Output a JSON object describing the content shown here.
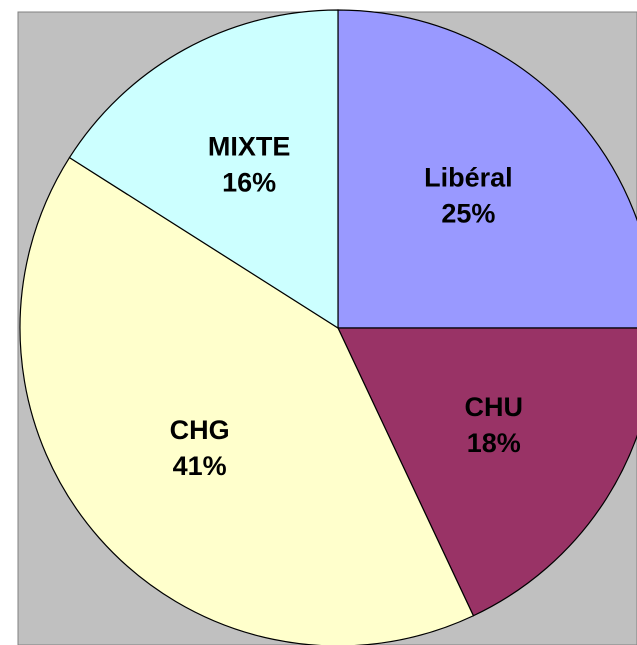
{
  "chart_data": {
    "type": "pie",
    "categories": [
      "Libéral",
      "CHU",
      "CHG",
      "MIXTE"
    ],
    "values": [
      25,
      18,
      41,
      16
    ],
    "value_labels": [
      "25%",
      "18%",
      "41%",
      "16%"
    ],
    "colors": [
      "#9999ff",
      "#993366",
      "#ffffcc",
      "#ccffff"
    ]
  }
}
